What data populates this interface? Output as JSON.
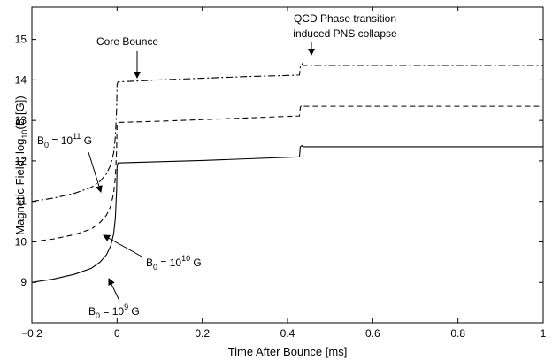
{
  "chart_data": {
    "type": "line",
    "xlabel": "Time After Bounce [ms]",
    "ylabel": "Magnetic Field, log",
    "ylabel_sub": "10",
    "ylabel_tail": "(B [G])",
    "xlim": [
      -0.2,
      1
    ],
    "ylim": [
      8,
      15.8
    ],
    "x_ticks": [
      -0.2,
      0,
      0.2,
      0.4,
      0.6,
      0.8,
      1
    ],
    "x_tick_labels": [
      "−0.2",
      "0",
      "0.2",
      "0.4",
      "0.6",
      "0.8",
      "1"
    ],
    "y_ticks": [
      9,
      10,
      11,
      12,
      13,
      14,
      15
    ],
    "y_tick_labels": [
      "9",
      "10",
      "11",
      "12",
      "13",
      "14",
      "15"
    ],
    "grid": false,
    "series": [
      {
        "line_style": "solid",
        "x": [
          -0.2,
          -0.15,
          -0.1,
          -0.06,
          -0.04,
          -0.025,
          -0.015,
          -0.008,
          -0.004,
          -0.001,
          0.0,
          0.002,
          0.1,
          0.2,
          0.3,
          0.4,
          0.428,
          0.43,
          0.434,
          0.436,
          0.5,
          0.6,
          0.8,
          1.0
        ],
        "y": [
          9.0,
          9.08,
          9.2,
          9.35,
          9.5,
          9.68,
          9.9,
          10.2,
          10.6,
          11.3,
          11.85,
          11.95,
          11.98,
          12.01,
          12.05,
          12.09,
          12.1,
          12.35,
          12.38,
          12.35,
          12.35,
          12.35,
          12.35,
          12.35
        ]
      },
      {
        "line_style": "dashed",
        "x": [
          -0.2,
          -0.15,
          -0.1,
          -0.06,
          -0.04,
          -0.025,
          -0.015,
          -0.008,
          -0.004,
          -0.001,
          0.0,
          0.002,
          0.1,
          0.2,
          0.3,
          0.4,
          0.428,
          0.43,
          0.434,
          0.436,
          0.5,
          0.6,
          0.8,
          1.0
        ],
        "y": [
          10.0,
          10.07,
          10.18,
          10.32,
          10.48,
          10.66,
          10.88,
          11.2,
          11.6,
          12.3,
          12.88,
          12.95,
          12.98,
          13.02,
          13.06,
          13.1,
          13.11,
          13.33,
          13.38,
          13.35,
          13.35,
          13.35,
          13.35,
          13.35
        ]
      },
      {
        "line_style": "dashdot",
        "x": [
          -0.2,
          -0.15,
          -0.1,
          -0.06,
          -0.04,
          -0.025,
          -0.015,
          -0.008,
          -0.004,
          -0.001,
          0.0,
          0.002,
          0.1,
          0.2,
          0.3,
          0.4,
          0.428,
          0.43,
          0.434,
          0.436,
          0.5,
          0.6,
          0.8,
          1.0
        ],
        "y": [
          11.0,
          11.08,
          11.2,
          11.35,
          11.5,
          11.68,
          11.9,
          12.2,
          12.6,
          13.3,
          13.88,
          13.95,
          14.0,
          14.04,
          14.08,
          14.11,
          14.12,
          14.33,
          14.4,
          14.36,
          14.36,
          14.36,
          14.36,
          14.36
        ]
      }
    ],
    "annotations": {
      "core_bounce": "Core Bounce",
      "qcd_line1": "QCD Phase transition",
      "qcd_line2": "induced PNS collapse",
      "b0_11": {
        "base": "B",
        "sub": "0",
        "eq": " = 10",
        "sup": "11",
        "unit": " G"
      },
      "b0_10": {
        "base": "B",
        "sub": "0",
        "eq": " = 10",
        "sup": "10",
        "unit": " G"
      },
      "b0_9": {
        "base": "B",
        "sub": "0",
        "eq": " = 10",
        "sup": "9",
        "unit": " G"
      }
    }
  }
}
